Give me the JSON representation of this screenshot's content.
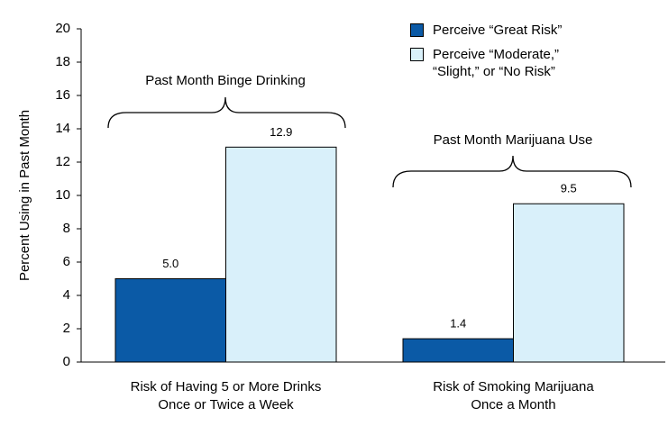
{
  "chart_data": {
    "type": "bar",
    "y_label": "Percent Using in Past Month",
    "categories": [
      [
        "Risk of Having 5 or More Drinks",
        "Once or Twice a Week"
      ],
      [
        "Risk of Smoking Marijuana",
        "Once a Month"
      ]
    ],
    "series": [
      {
        "name": "Perceive “Great Risk”",
        "color": "#0b5aa6",
        "values": [
          5.0,
          1.4
        ],
        "value_labels": [
          "5.0",
          "1.4"
        ]
      },
      {
        "name": "Perceive “Moderate,” “Slight,” or “No Risk”",
        "color": "#d9f0fa",
        "values": [
          12.9,
          9.5
        ],
        "value_labels": [
          "12.9",
          "9.5"
        ]
      }
    ],
    "annotations": [
      {
        "text": "Past Month Binge Drinking"
      },
      {
        "text": "Past Month Marijuana Use"
      }
    ],
    "ylim": [
      0,
      20
    ],
    "yticks": [
      0,
      2,
      4,
      6,
      8,
      10,
      12,
      14,
      16,
      18,
      20
    ],
    "legend": "top-right"
  }
}
